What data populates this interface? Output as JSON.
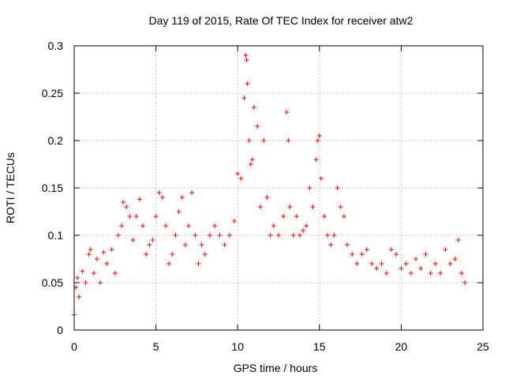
{
  "chart_data": {
    "type": "scatter",
    "title": "Day 119 of 2015, Rate Of TEC Index for receiver atw2",
    "xlabel": "GPS time / hours",
    "ylabel": "ROTI / TECUs",
    "xlim": [
      0,
      25
    ],
    "ylim": [
      0,
      0.3
    ],
    "x_ticks": [
      0,
      5,
      10,
      15,
      20,
      25
    ],
    "x_tick_labels": [
      "0",
      "5",
      "10",
      "15",
      "20",
      "25"
    ],
    "y_ticks": [
      0,
      0.05,
      0.1,
      0.15,
      0.2,
      0.25,
      0.3
    ],
    "y_tick_labels": [
      "0",
      "0.05",
      "0.1",
      "0.15",
      "0.2",
      "0.25",
      "0.3"
    ],
    "grid": true,
    "marker": "+",
    "marker_color": "#ff0000",
    "series": [
      {
        "points": [
          [
            0.0,
            0.016
          ],
          [
            0.1,
            0.045
          ],
          [
            0.2,
            0.055
          ],
          [
            0.3,
            0.035
          ],
          [
            0.5,
            0.062
          ],
          [
            0.7,
            0.05
          ],
          [
            0.9,
            0.08
          ],
          [
            1.0,
            0.085
          ],
          [
            1.2,
            0.06
          ],
          [
            1.4,
            0.075
          ],
          [
            1.6,
            0.05
          ],
          [
            1.8,
            0.082
          ],
          [
            2.0,
            0.07
          ],
          [
            2.3,
            0.085
          ],
          [
            2.5,
            0.06
          ],
          [
            2.7,
            0.1
          ],
          [
            2.9,
            0.11
          ],
          [
            3.0,
            0.135
          ],
          [
            3.2,
            0.13
          ],
          [
            3.4,
            0.12
          ],
          [
            3.6,
            0.095
          ],
          [
            3.8,
            0.12
          ],
          [
            4.0,
            0.138
          ],
          [
            4.2,
            0.11
          ],
          [
            4.4,
            0.08
          ],
          [
            4.6,
            0.09
          ],
          [
            4.8,
            0.095
          ],
          [
            5.0,
            0.12
          ],
          [
            5.2,
            0.145
          ],
          [
            5.4,
            0.14
          ],
          [
            5.6,
            0.11
          ],
          [
            5.8,
            0.07
          ],
          [
            6.0,
            0.08
          ],
          [
            6.2,
            0.1
          ],
          [
            6.4,
            0.125
          ],
          [
            6.6,
            0.14
          ],
          [
            6.8,
            0.09
          ],
          [
            7.0,
            0.11
          ],
          [
            7.2,
            0.145
          ],
          [
            7.4,
            0.1
          ],
          [
            7.6,
            0.07
          ],
          [
            7.8,
            0.09
          ],
          [
            8.0,
            0.08
          ],
          [
            8.3,
            0.1
          ],
          [
            8.6,
            0.11
          ],
          [
            8.9,
            0.1
          ],
          [
            9.2,
            0.09
          ],
          [
            9.5,
            0.1
          ],
          [
            9.8,
            0.115
          ],
          [
            10.0,
            0.165
          ],
          [
            10.2,
            0.16
          ],
          [
            10.4,
            0.245
          ],
          [
            10.5,
            0.29
          ],
          [
            10.55,
            0.285
          ],
          [
            10.6,
            0.26
          ],
          [
            10.7,
            0.2
          ],
          [
            10.8,
            0.175
          ],
          [
            10.9,
            0.18
          ],
          [
            11.0,
            0.235
          ],
          [
            11.2,
            0.215
          ],
          [
            11.4,
            0.13
          ],
          [
            11.6,
            0.2
          ],
          [
            11.8,
            0.14
          ],
          [
            12.0,
            0.1
          ],
          [
            12.2,
            0.11
          ],
          [
            12.5,
            0.1
          ],
          [
            12.8,
            0.12
          ],
          [
            13.0,
            0.23
          ],
          [
            13.1,
            0.2
          ],
          [
            13.2,
            0.13
          ],
          [
            13.4,
            0.1
          ],
          [
            13.6,
            0.12
          ],
          [
            13.8,
            0.1
          ],
          [
            14.0,
            0.105
          ],
          [
            14.2,
            0.11
          ],
          [
            14.4,
            0.15
          ],
          [
            14.6,
            0.13
          ],
          [
            14.8,
            0.18
          ],
          [
            14.9,
            0.2
          ],
          [
            15.0,
            0.205
          ],
          [
            15.1,
            0.16
          ],
          [
            15.3,
            0.12
          ],
          [
            15.5,
            0.1
          ],
          [
            15.7,
            0.09
          ],
          [
            15.9,
            0.1
          ],
          [
            16.1,
            0.15
          ],
          [
            16.3,
            0.13
          ],
          [
            16.5,
            0.12
          ],
          [
            16.7,
            0.09
          ],
          [
            17.0,
            0.08
          ],
          [
            17.3,
            0.07
          ],
          [
            17.6,
            0.08
          ],
          [
            17.9,
            0.085
          ],
          [
            18.2,
            0.07
          ],
          [
            18.5,
            0.065
          ],
          [
            18.8,
            0.07
          ],
          [
            19.1,
            0.06
          ],
          [
            19.4,
            0.085
          ],
          [
            19.7,
            0.08
          ],
          [
            20.0,
            0.065
          ],
          [
            20.3,
            0.07
          ],
          [
            20.6,
            0.06
          ],
          [
            20.9,
            0.075
          ],
          [
            21.2,
            0.065
          ],
          [
            21.5,
            0.08
          ],
          [
            21.8,
            0.06
          ],
          [
            22.1,
            0.07
          ],
          [
            22.4,
            0.06
          ],
          [
            22.7,
            0.085
          ],
          [
            23.0,
            0.07
          ],
          [
            23.3,
            0.075
          ],
          [
            23.5,
            0.095
          ],
          [
            23.7,
            0.06
          ],
          [
            23.9,
            0.05
          ]
        ]
      }
    ]
  }
}
